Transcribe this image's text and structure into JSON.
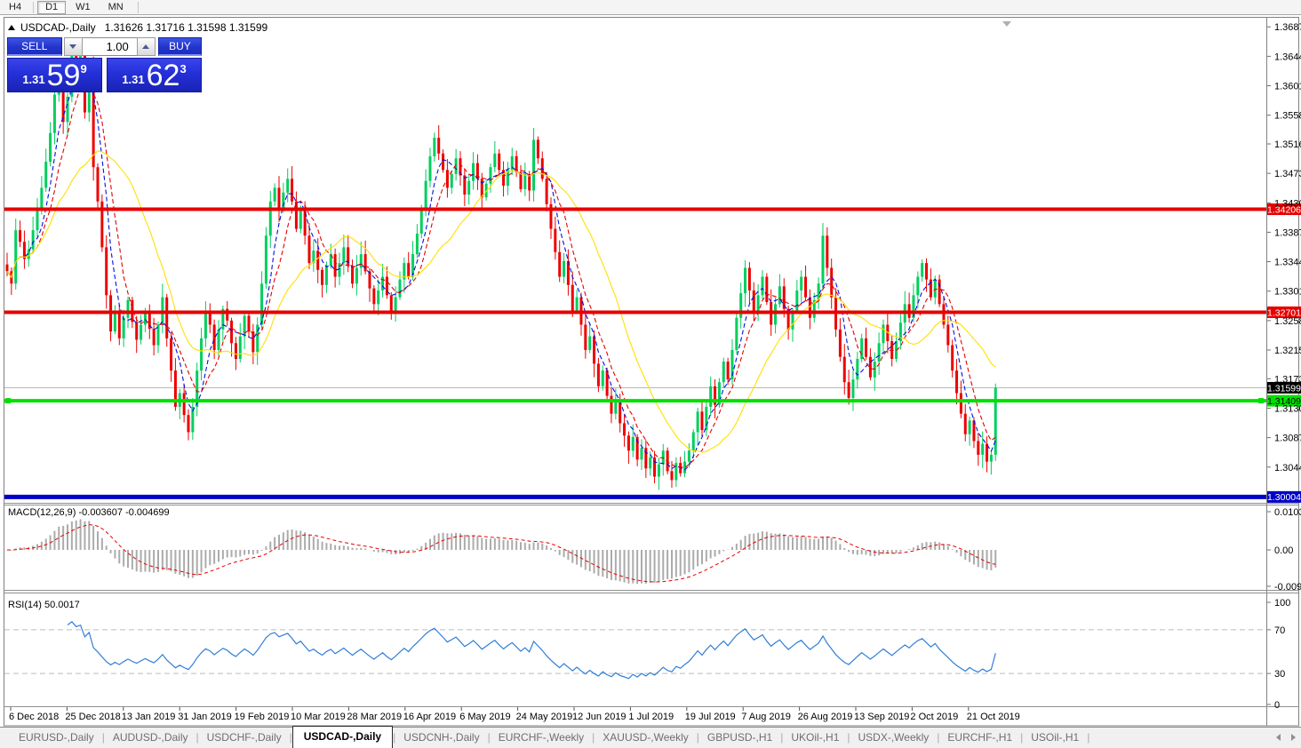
{
  "toolbar": {
    "timeframes": [
      "H4",
      "D1",
      "W1",
      "MN"
    ],
    "active": "D1"
  },
  "chart_header": {
    "symbol": "USDCAD-,Daily",
    "ohlc": "1.31626 1.31716 1.31598 1.31599"
  },
  "trade_panel": {
    "sell_label": "SELL",
    "buy_label": "BUY",
    "volume": "1.00",
    "sell_price": {
      "prefix": "1.31",
      "big": "59",
      "sup": "9"
    },
    "buy_price": {
      "prefix": "1.31",
      "big": "62",
      "sup": "3"
    }
  },
  "chart_data": {
    "type": "candlestick",
    "symbol": "USDCAD-,Daily",
    "first_open": 1.334,
    "closes": [
      1.333,
      1.3312,
      1.339,
      1.3373,
      1.3348,
      1.3362,
      1.339,
      1.3418,
      1.3452,
      1.349,
      1.3532,
      1.3588,
      1.3622,
      1.3548,
      1.3585,
      1.365,
      1.3618,
      1.3645,
      1.3562,
      1.3628,
      1.3482,
      1.3432,
      1.3365,
      1.3295,
      1.3242,
      1.3268,
      1.3232,
      1.3262,
      1.3288,
      1.3256,
      1.323,
      1.3252,
      1.3272,
      1.3246,
      1.3222,
      1.3252,
      1.3292,
      1.3232,
      1.3185,
      1.3132,
      1.3152,
      1.312,
      1.3095,
      1.3132,
      1.3185,
      1.3232,
      1.3272,
      1.3252,
      1.3215,
      1.3245,
      1.3275,
      1.3258,
      1.3225,
      1.3202,
      1.3235,
      1.3265,
      1.3242,
      1.3212,
      1.3252,
      1.3312,
      1.3382,
      1.3432,
      1.3452,
      1.3422,
      1.3445,
      1.3465,
      1.3432,
      1.3392,
      1.342,
      1.3382,
      1.3342,
      1.336,
      1.3332,
      1.331,
      1.3338,
      1.3355,
      1.3322,
      1.3342,
      1.3365,
      1.3338,
      1.3312,
      1.3335,
      1.3355,
      1.333,
      1.3305,
      1.3282,
      1.3302,
      1.3322,
      1.3295,
      1.3272,
      1.3292,
      1.3318,
      1.3342,
      1.3322,
      1.3355,
      1.3385,
      1.342,
      1.3462,
      1.3498,
      1.3525,
      1.3502,
      1.3478,
      1.3452,
      1.3472,
      1.3495,
      1.347,
      1.3442,
      1.3462,
      1.3488,
      1.3465,
      1.3438,
      1.3458,
      1.3482,
      1.3502,
      1.3478,
      1.3455,
      1.3478,
      1.3498,
      1.3475,
      1.345,
      1.3472,
      1.3448,
      1.3522,
      1.3495,
      1.3465,
      1.3428,
      1.3392,
      1.3358,
      1.3322,
      1.3345,
      1.331,
      1.3272,
      1.3292,
      1.3252,
      1.3215,
      1.3235,
      1.3195,
      1.3162,
      1.3185,
      1.3148,
      1.3122,
      1.3142,
      1.3108,
      1.309,
      1.3068,
      1.3088,
      1.3055,
      1.3072,
      1.3042,
      1.3058,
      1.303,
      1.3048,
      1.3068,
      1.3038,
      1.3025,
      1.305,
      1.3035,
      1.3052,
      1.3068,
      1.3095,
      1.3125,
      1.3098,
      1.3132,
      1.3162,
      1.3135,
      1.3168,
      1.3198,
      1.3172,
      1.3215,
      1.3262,
      1.3298,
      1.3335,
      1.3302,
      1.3272,
      1.3295,
      1.3322,
      1.3285,
      1.3252,
      1.3282,
      1.3308,
      1.3275,
      1.3245,
      1.3272,
      1.3302,
      1.3322,
      1.3292,
      1.3262,
      1.3288,
      1.3312,
      1.3382,
      1.3335,
      1.3292,
      1.3245,
      1.3205,
      1.3168,
      1.3145,
      1.3172,
      1.3202,
      1.3232,
      1.3205,
      1.3175,
      1.3198,
      1.3225,
      1.3252,
      1.3228,
      1.3202,
      1.3228,
      1.3255,
      1.3282,
      1.3262,
      1.3295,
      1.3322,
      1.3342,
      1.3318,
      1.3292,
      1.3318,
      1.3282,
      1.3252,
      1.3222,
      1.3185,
      1.3152,
      1.3122,
      1.3092,
      1.3112,
      1.3082,
      1.3062,
      1.3078,
      1.3052,
      1.3062,
      1.316
    ],
    "x_labels": [
      "6 Dec 2018",
      "25 Dec 2018",
      "13 Jan 2019",
      "31 Jan 2019",
      "19 Feb 2019",
      "10 Mar 2019",
      "28 Mar 2019",
      "16 Apr 2019",
      "6 May 2019",
      "24 May 2019",
      "12 Jun 2019",
      "1 Jul 2019",
      "19 Jul 2019",
      "7 Aug 2019",
      "26 Aug 2019",
      "13 Sep 2019",
      "2 Oct 2019",
      "21 Oct 2019"
    ],
    "y_axis_ticks": [
      "1.36870",
      "1.36440",
      "1.36010",
      "1.35580",
      "1.35160",
      "1.34730",
      "1.34300",
      "1.33870",
      "1.33440",
      "1.33010",
      "1.32580",
      "1.32150",
      "1.31730",
      "1.31300",
      "1.30870",
      "1.30440"
    ],
    "price_axis_range": {
      "top": 1.36938,
      "bottom": 1.29918
    },
    "candle_colors": {
      "up": "#00CE5E",
      "down": "#ED0000"
    },
    "moving_averages": [
      {
        "period": 5,
        "color": "#0010E0",
        "dashed": true
      },
      {
        "period": 8,
        "color": "#E60000",
        "dashed": true
      },
      {
        "period": 20,
        "color": "#FFE000",
        "dashed": false
      }
    ],
    "hlines": [
      {
        "price": 1.34206,
        "label": "1.34206",
        "color": "#E60000",
        "thickness": 4,
        "text": "#fff"
      },
      {
        "price": 1.32701,
        "label": "1.32701",
        "color": "#E60000",
        "thickness": 4,
        "text": "#fff"
      },
      {
        "price": 1.31409,
        "label": "1.31409",
        "color": "#00E000",
        "thickness": 4,
        "text": "#000",
        "selected": true
      },
      {
        "price": 1.30004,
        "label": "1.30004",
        "color": "#0000C8",
        "thickness": 5,
        "text": "#fff"
      }
    ],
    "current_price": {
      "price": 1.31599,
      "label": "1.31599"
    },
    "macd": {
      "title": "MACD(12,26,9)",
      "values": "-0.003607 -0.004699",
      "fast": 12,
      "slow": 26,
      "signal": 9,
      "axis_ticks": [
        "0.010311",
        "0.00",
        "-0.009203"
      ],
      "histogram_color": "#ABABAB",
      "signal_color": "#E60000"
    },
    "rsi": {
      "title": "RSI(14)",
      "value": "50.0017",
      "period": 14,
      "axis_ticks": [
        "100",
        "70",
        "30",
        "0"
      ],
      "levels": [
        70,
        30
      ],
      "line_color": "#2F7ED8"
    }
  },
  "tabs": {
    "items": [
      {
        "label": "EURUSD-,Daily"
      },
      {
        "label": "AUDUSD-,Daily"
      },
      {
        "label": "USDCHF-,Daily"
      },
      {
        "label": "USDCAD-,Daily"
      },
      {
        "label": "USDCNH-,Daily"
      },
      {
        "label": "EURCHF-,Weekly"
      },
      {
        "label": "XAUUSD-,Weekly"
      },
      {
        "label": "GBPUSD-,H1"
      },
      {
        "label": "UKOil-,H1"
      },
      {
        "label": "USDX-,Weekly"
      },
      {
        "label": "EURCHF-,H1"
      },
      {
        "label": "USOil-,H1"
      }
    ],
    "active_index": 3
  }
}
